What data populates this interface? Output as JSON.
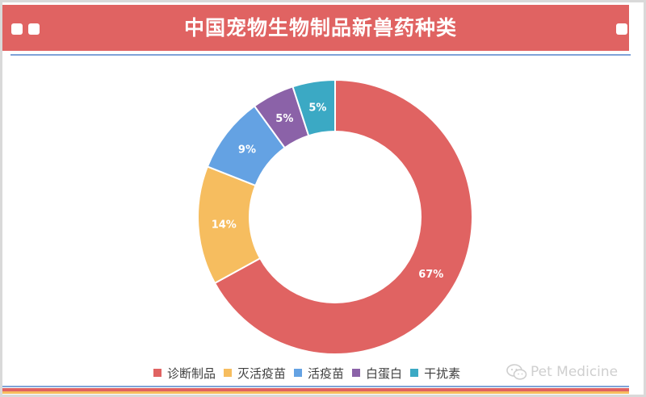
{
  "title": "中国宠物生物制品新兽药种类",
  "watermark": "Pet Medicine",
  "colors": {
    "banner": "#e06362",
    "accent_line": "#7fa3d8",
    "label_text": "#ffffff"
  },
  "chart_data": {
    "type": "pie",
    "style": "donut",
    "title": "中国宠物生物制品新兽药种类",
    "legend_position": "bottom",
    "categories": [
      "诊断制品",
      "灭活疫苗",
      "活疫苗",
      "白蛋白",
      "干扰素"
    ],
    "values": [
      67,
      14,
      9,
      5,
      5
    ],
    "labels": [
      "67%",
      "14%",
      "9%",
      "5%",
      "5%"
    ],
    "colors": [
      "#e06362",
      "#f6bd5f",
      "#64a2e3",
      "#8b62a8",
      "#3ba9c4"
    ]
  }
}
